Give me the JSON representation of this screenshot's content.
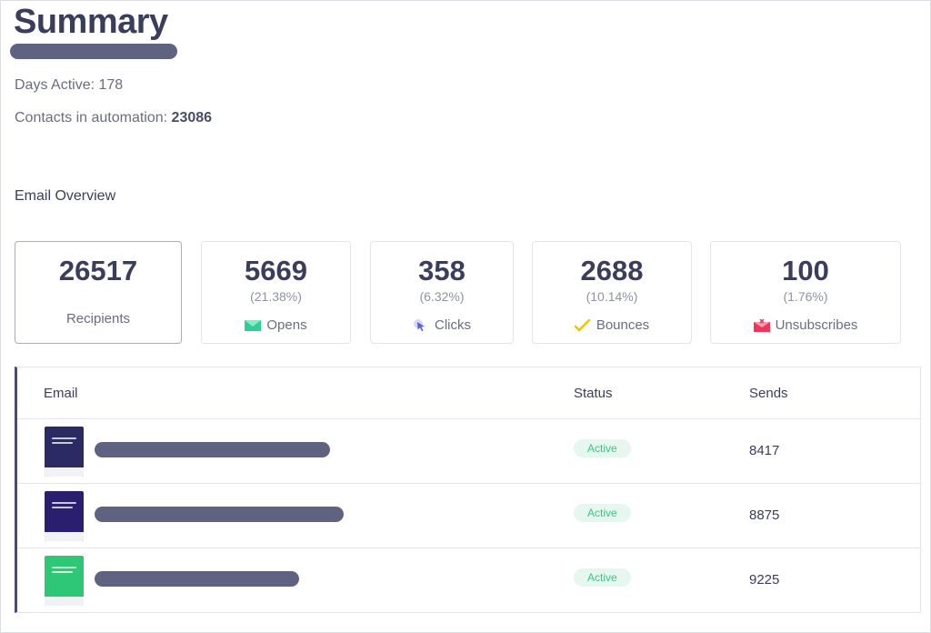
{
  "header": {
    "title": "Summary",
    "days_active_label": "Days Active:",
    "days_active_value": "178",
    "contacts_label": "Contacts in automation:",
    "contacts_value": "23086"
  },
  "overview": {
    "title": "Email Overview",
    "cards": [
      {
        "value": "26517",
        "percent": "",
        "label": "Recipients",
        "icon": ""
      },
      {
        "value": "5669",
        "percent": "(21.38%)",
        "label": "Opens",
        "icon": "envelope-open-icon"
      },
      {
        "value": "358",
        "percent": "(6.32%)",
        "label": "Clicks",
        "icon": "cursor-click-icon"
      },
      {
        "value": "2688",
        "percent": "(10.14%)",
        "label": "Bounces",
        "icon": "bounce-check-icon"
      },
      {
        "value": "100",
        "percent": "(1.76%)",
        "label": "Unsubscribes",
        "icon": "unsubscribe-envelope-icon"
      }
    ]
  },
  "table": {
    "headers": {
      "email": "Email",
      "status": "Status",
      "sends": "Sends"
    },
    "rows": [
      {
        "status": "Active",
        "sends": "8417",
        "thumb_color": "#2b2a63"
      },
      {
        "status": "Active",
        "sends": "8875",
        "thumb_color": "#2a1f6e"
      },
      {
        "status": "Active",
        "sends": "9225",
        "thumb_color": "#2ec775"
      }
    ]
  },
  "colors": {
    "heading": "#3a3d5c",
    "redaction": "#5f6381",
    "active_badge_bg": "#e6f7ef",
    "active_badge_text": "#3cc48a",
    "opens_icon": "#2fcf9a",
    "clicks_icon": "#5b5fe0",
    "bounces_icon": "#f2c200",
    "unsubscribes_icon": "#e8395b"
  }
}
